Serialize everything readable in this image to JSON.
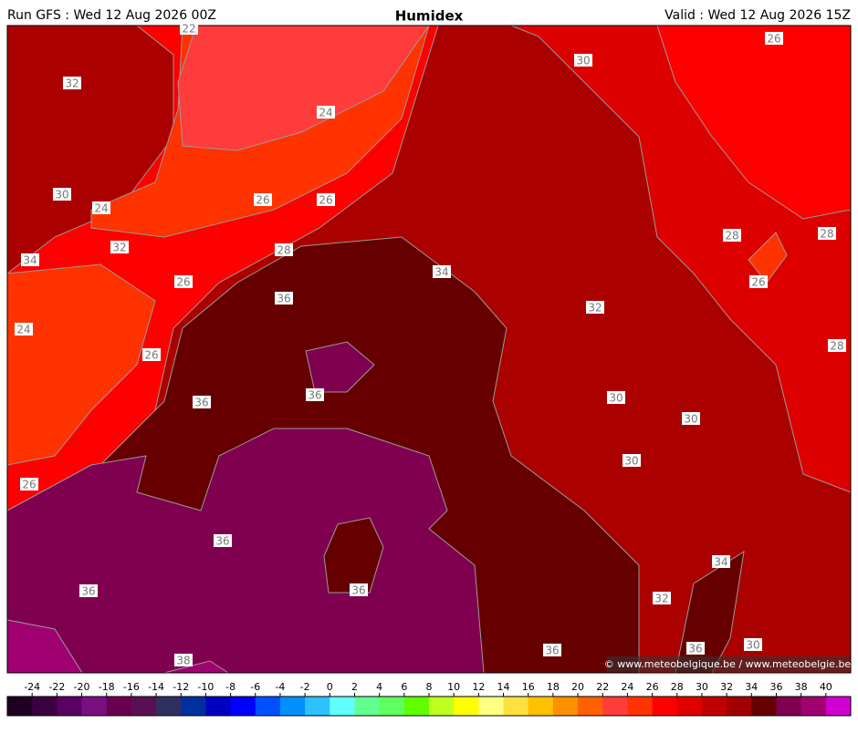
{
  "header": {
    "run": "Run GFS : Wed 12 Aug 2026 00Z",
    "title": "Humidex",
    "valid": "Valid : Wed 12 Aug 2026 15Z"
  },
  "contour_labels": [
    22,
    32,
    24,
    30,
    26,
    30,
    24,
    26,
    26,
    32,
    28,
    34,
    34,
    28,
    28,
    26,
    36,
    26,
    32,
    24,
    28,
    26,
    36,
    36,
    30,
    30,
    30,
    26,
    36,
    34,
    36,
    36,
    32,
    30,
    36,
    36,
    38
  ],
  "credit": "© www.meteobelgique.be / www.meteobelgie.be",
  "colorbar": {
    "ticks": [
      -24,
      -22,
      -20,
      -18,
      -16,
      -14,
      -12,
      -10,
      -8,
      -6,
      -4,
      -2,
      0,
      2,
      4,
      6,
      8,
      10,
      12,
      14,
      16,
      18,
      20,
      22,
      24,
      26,
      28,
      30,
      32,
      34,
      36,
      38,
      40
    ],
    "colors": [
      "#200020",
      "#3a0040",
      "#5a0060",
      "#7a1080",
      "#6a0050",
      "#5a1050",
      "#303060",
      "#0030a0",
      "#0000c0",
      "#0000ff",
      "#0050ff",
      "#0090ff",
      "#30c0ff",
      "#60ffff",
      "#60ff90",
      "#60ff60",
      "#60ff00",
      "#c0ff20",
      "#ffff00",
      "#ffff80",
      "#ffe040",
      "#ffc000",
      "#ff9000",
      "#ff6000",
      "#ff3c3c",
      "#ff3300",
      "#ff0000",
      "#e00000",
      "#c00000",
      "#a00000",
      "#660000",
      "#800050",
      "#a00070",
      "#d000d0"
    ]
  }
}
